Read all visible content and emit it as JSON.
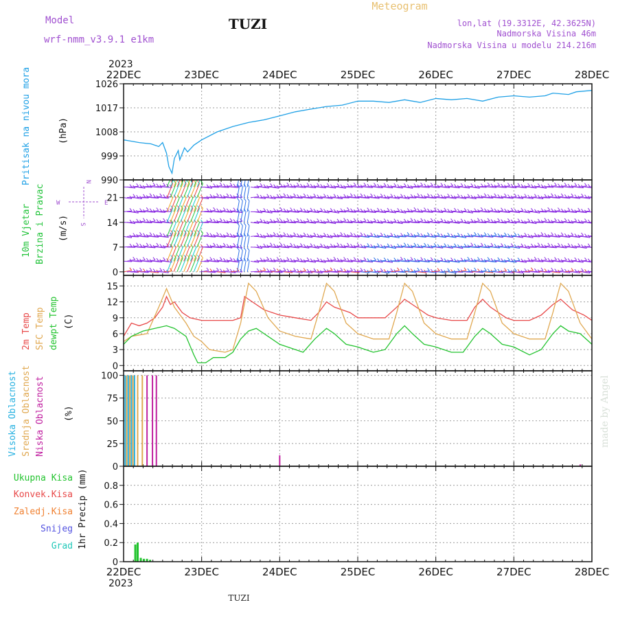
{
  "header": {
    "model_label": "Model",
    "model_value": "wrf-nmm_v3.9.1  e1km",
    "station": "TUZI",
    "product": "Meteogram",
    "lonlat": "lon,lat (19.3312E, 42.3625N)",
    "elevation": "Nadmorska Visina 46m",
    "model_elevation": "Nadmorska Visina u modelu 214.216m",
    "footer_station": "TUZI",
    "watermark": "made by Angel"
  },
  "colors": {
    "pressure": "#1ea0e6",
    "wind_main": "#8a2be2",
    "wind_blue": "#2a6fe8",
    "wind_red": "#e84040",
    "wind_green": "#22c33a",
    "wind_cyan": "#12c9c9",
    "wind_orange": "#f0a020",
    "t2m": "#e84848",
    "sfc": "#e0a850",
    "dewpt": "#22c32e",
    "high_cloud": "#25b0e0",
    "mid_cloud": "#e0a850",
    "low_cloud": "#c020a0",
    "total_precip": "#22c32e",
    "conv_precip": "#e84848",
    "frozen_precip": "#f08030",
    "snow": "#5050e0",
    "hail": "#20c8b8",
    "purple_text": "#a050d0",
    "gold_text": "#e8c070"
  },
  "time_axis": {
    "top_year": "2023",
    "bottom_year": "2023",
    "labels": [
      "22DEC",
      "23DEC",
      "24DEC",
      "25DEC",
      "26DEC",
      "27DEC",
      "28DEC"
    ],
    "start": "2023-12-22 00Z",
    "end": "2023-12-28 00Z"
  },
  "chart_data": [
    {
      "type": "line",
      "title": "",
      "ylabel": "Pritisak na nivou mora",
      "unit": "(hPa)",
      "ylim": [
        990,
        1026
      ],
      "yticks": [
        "990",
        "999",
        "1008",
        "1017",
        "1026"
      ],
      "series": [
        {
          "name": "Pritisak na nivou mora",
          "points": [
            [
              0,
              1005
            ],
            [
              0.1,
              1004.5
            ],
            [
              0.2,
              1004
            ],
            [
              0.35,
              1003.5
            ],
            [
              0.45,
              1002.5
            ],
            [
              0.5,
              1004
            ],
            [
              0.55,
              1000
            ],
            [
              0.58,
              995
            ],
            [
              0.62,
              992.5
            ],
            [
              0.65,
              998
            ],
            [
              0.7,
              1001
            ],
            [
              0.72,
              997.5
            ],
            [
              0.78,
              1002
            ],
            [
              0.82,
              1000.5
            ],
            [
              0.9,
              1003
            ],
            [
              1.0,
              1005
            ],
            [
              1.2,
              1008
            ],
            [
              1.4,
              1010
            ],
            [
              1.6,
              1011.5
            ],
            [
              1.8,
              1012.5
            ],
            [
              2.0,
              1014
            ],
            [
              2.2,
              1015.5
            ],
            [
              2.4,
              1016.5
            ],
            [
              2.6,
              1017.5
            ],
            [
              2.8,
              1018
            ],
            [
              3.0,
              1019.5
            ],
            [
              3.2,
              1019.5
            ],
            [
              3.4,
              1019
            ],
            [
              3.6,
              1020
            ],
            [
              3.8,
              1019
            ],
            [
              4.0,
              1020.5
            ],
            [
              4.2,
              1020
            ],
            [
              4.4,
              1020.5
            ],
            [
              4.6,
              1019.5
            ],
            [
              4.8,
              1021
            ],
            [
              5.0,
              1021.5
            ],
            [
              5.2,
              1021
            ],
            [
              5.4,
              1021.5
            ],
            [
              5.5,
              1022.5
            ],
            [
              5.7,
              1022
            ],
            [
              5.8,
              1023
            ],
            [
              6.0,
              1023.5
            ]
          ]
        }
      ]
    },
    {
      "type": "scatter",
      "title": "",
      "ylabel": "10m Vjetar Brzina i Pravac",
      "unit": "(m/s)",
      "ylim": [
        -1,
        26
      ],
      "yticks": [
        "0",
        "7",
        "14",
        "21"
      ],
      "legend_compass": {
        "n": "N",
        "s": "S",
        "e": "E",
        "w": "W"
      }
    },
    {
      "type": "line",
      "title": "",
      "ylabel": "2m Temp / SFC Temp / dewpt Temp",
      "unit": "(C)",
      "ylim": [
        -1,
        17
      ],
      "yticks": [
        "0",
        "3",
        "6",
        "9",
        "12",
        "15"
      ],
      "series": [
        {
          "name": "2m Temp",
          "points": [
            [
              0,
              5.5
            ],
            [
              0.1,
              8
            ],
            [
              0.2,
              7.5
            ],
            [
              0.3,
              8
            ],
            [
              0.4,
              9
            ],
            [
              0.5,
              11
            ],
            [
              0.55,
              13
            ],
            [
              0.6,
              11.5
            ],
            [
              0.65,
              12
            ],
            [
              0.75,
              10
            ],
            [
              0.85,
              9
            ],
            [
              1.0,
              8.5
            ],
            [
              1.2,
              8.5
            ],
            [
              1.4,
              8.5
            ],
            [
              1.5,
              9
            ],
            [
              1.55,
              13
            ],
            [
              1.65,
              12
            ],
            [
              1.8,
              10.5
            ],
            [
              2.0,
              9.5
            ],
            [
              2.2,
              9
            ],
            [
              2.4,
              8.5
            ],
            [
              2.5,
              10
            ],
            [
              2.6,
              12
            ],
            [
              2.7,
              11
            ],
            [
              2.9,
              10
            ],
            [
              3.0,
              9
            ],
            [
              3.2,
              9
            ],
            [
              3.35,
              9
            ],
            [
              3.5,
              11
            ],
            [
              3.6,
              12.5
            ],
            [
              3.7,
              11.5
            ],
            [
              3.9,
              9.5
            ],
            [
              4.0,
              9
            ],
            [
              4.2,
              8.5
            ],
            [
              4.4,
              8.5
            ],
            [
              4.5,
              11
            ],
            [
              4.6,
              12.5
            ],
            [
              4.7,
              11
            ],
            [
              4.9,
              9
            ],
            [
              5.0,
              8.5
            ],
            [
              5.2,
              8.5
            ],
            [
              5.35,
              9.5
            ],
            [
              5.5,
              11.5
            ],
            [
              5.6,
              12.5
            ],
            [
              5.75,
              10.5
            ],
            [
              5.9,
              9.5
            ],
            [
              6.0,
              8.5
            ]
          ]
        },
        {
          "name": "SFC Temp",
          "points": [
            [
              0,
              4.5
            ],
            [
              0.1,
              5.5
            ],
            [
              0.3,
              6
            ],
            [
              0.45,
              11
            ],
            [
              0.55,
              14.5
            ],
            [
              0.65,
              11
            ],
            [
              0.8,
              8
            ],
            [
              0.9,
              5.5
            ],
            [
              1.0,
              4.5
            ],
            [
              1.1,
              3
            ],
            [
              1.3,
              2.5
            ],
            [
              1.4,
              3
            ],
            [
              1.5,
              8
            ],
            [
              1.6,
              15.5
            ],
            [
              1.7,
              14
            ],
            [
              1.85,
              9
            ],
            [
              2.0,
              6.5
            ],
            [
              2.2,
              5.5
            ],
            [
              2.4,
              5
            ],
            [
              2.5,
              10
            ],
            [
              2.6,
              15.5
            ],
            [
              2.7,
              14
            ],
            [
              2.85,
              8
            ],
            [
              3.0,
              6
            ],
            [
              3.2,
              5
            ],
            [
              3.4,
              5
            ],
            [
              3.5,
              10
            ],
            [
              3.6,
              15.5
            ],
            [
              3.7,
              14
            ],
            [
              3.85,
              8
            ],
            [
              4.0,
              6
            ],
            [
              4.2,
              5
            ],
            [
              4.4,
              5
            ],
            [
              4.5,
              10
            ],
            [
              4.6,
              15.5
            ],
            [
              4.7,
              14
            ],
            [
              4.85,
              8
            ],
            [
              5.0,
              6
            ],
            [
              5.2,
              5
            ],
            [
              5.4,
              5
            ],
            [
              5.5,
              10
            ],
            [
              5.6,
              15.5
            ],
            [
              5.7,
              14
            ],
            [
              5.85,
              8
            ],
            [
              6.0,
              5
            ]
          ]
        },
        {
          "name": "dewpt Temp",
          "points": [
            [
              0,
              4
            ],
            [
              0.1,
              5.5
            ],
            [
              0.25,
              6.5
            ],
            [
              0.4,
              7
            ],
            [
              0.55,
              7.5
            ],
            [
              0.65,
              7
            ],
            [
              0.8,
              5.5
            ],
            [
              0.9,
              2
            ],
            [
              0.95,
              0.5
            ],
            [
              1.05,
              0.5
            ],
            [
              1.15,
              1.5
            ],
            [
              1.3,
              1.5
            ],
            [
              1.4,
              2.5
            ],
            [
              1.5,
              5
            ],
            [
              1.6,
              6.5
            ],
            [
              1.7,
              7
            ],
            [
              1.85,
              5.5
            ],
            [
              2.0,
              4
            ],
            [
              2.2,
              3
            ],
            [
              2.3,
              2.5
            ],
            [
              2.45,
              5
            ],
            [
              2.6,
              7
            ],
            [
              2.7,
              6
            ],
            [
              2.85,
              4
            ],
            [
              3.0,
              3.5
            ],
            [
              3.2,
              2.5
            ],
            [
              3.35,
              3
            ],
            [
              3.5,
              6
            ],
            [
              3.6,
              7.5
            ],
            [
              3.7,
              6
            ],
            [
              3.85,
              4
            ],
            [
              4.0,
              3.5
            ],
            [
              4.2,
              2.5
            ],
            [
              4.35,
              2.5
            ],
            [
              4.5,
              5.5
            ],
            [
              4.6,
              7
            ],
            [
              4.7,
              6
            ],
            [
              4.85,
              4
            ],
            [
              5.0,
              3.5
            ],
            [
              5.2,
              2
            ],
            [
              5.35,
              3
            ],
            [
              5.5,
              6
            ],
            [
              5.6,
              7.5
            ],
            [
              5.7,
              6.5
            ],
            [
              5.85,
              6
            ],
            [
              6.0,
              4
            ]
          ]
        }
      ]
    },
    {
      "type": "bar",
      "title": "",
      "ylabel": "Visoka Oblacnost / Srednja Oblacnost / Niska Oblacnost",
      "unit": "(%)",
      "ylim": [
        0,
        105
      ],
      "yticks": [
        "0",
        "25",
        "50",
        "75",
        "100"
      ],
      "series": [
        {
          "name": "Visoka Oblacnost",
          "points": [
            [
              0.02,
              100
            ],
            [
              0.06,
              100
            ],
            [
              0.1,
              100
            ],
            [
              0.14,
              100
            ]
          ]
        },
        {
          "name": "Srednja Oblacnost",
          "points": [
            [
              0.04,
              100
            ],
            [
              0.08,
              100
            ],
            [
              0.12,
              100
            ],
            [
              0.18,
              100
            ],
            [
              0.24,
              100
            ]
          ]
        },
        {
          "name": "Niska Oblacnost",
          "points": [
            [
              0.3,
              100
            ],
            [
              0.37,
              100
            ],
            [
              0.42,
              100
            ],
            [
              2.0,
              12
            ],
            [
              5.85,
              2
            ]
          ]
        }
      ]
    },
    {
      "type": "bar",
      "title": "",
      "ylabel": "1hr Precip",
      "unit": "(mm)",
      "ylim": [
        0,
        1.0
      ],
      "yticks": [
        "0",
        "0.2",
        "0.4",
        "0.6",
        "0.8"
      ],
      "legend": [
        "Ukupna Kisa",
        "Konvek.Kisa",
        "Zaledj.Kisa",
        "Snijeg",
        "Grad"
      ],
      "series": [
        {
          "name": "Ukupna Kisa",
          "points": [
            [
              0.15,
              0.18
            ],
            [
              0.18,
              0.2
            ],
            [
              0.22,
              0.04
            ],
            [
              0.26,
              0.03
            ],
            [
              0.3,
              0.03
            ],
            [
              0.34,
              0.02
            ]
          ]
        }
      ]
    }
  ]
}
